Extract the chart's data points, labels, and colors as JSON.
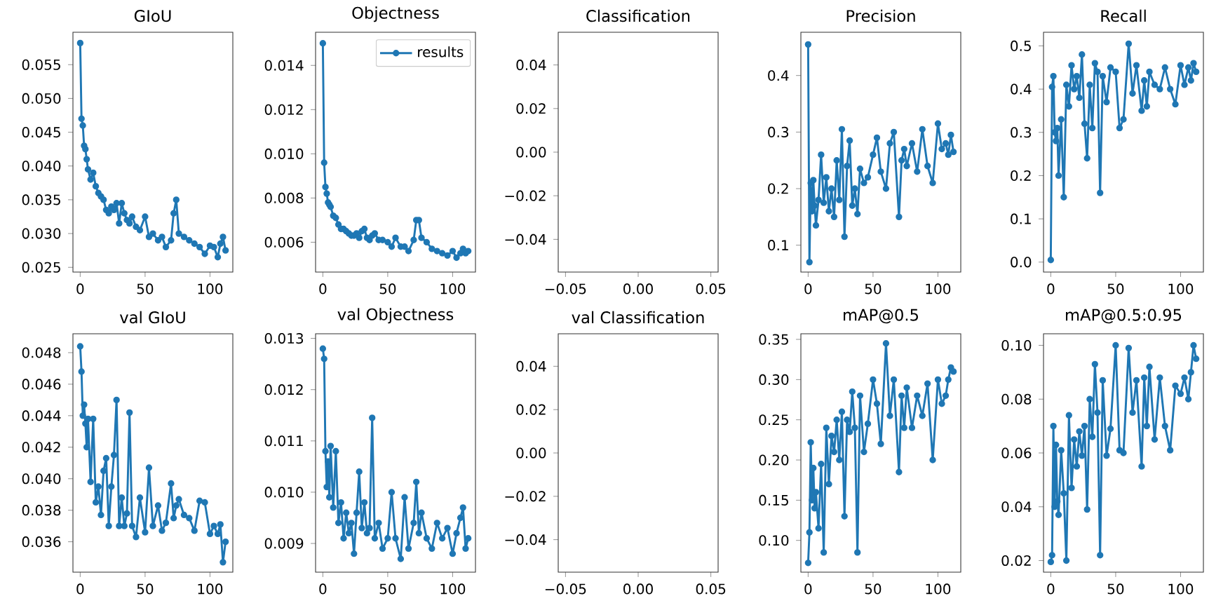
{
  "chart_data": [
    {
      "type": "line",
      "title": "GIoU",
      "marker": "circle",
      "xlim": [
        -5.6,
        117.6
      ],
      "ylim": [
        0.0243,
        0.0598
      ],
      "xticks": [
        0,
        50,
        100
      ],
      "yticks": [
        {
          "value": 0.025,
          "label": "0.025"
        },
        {
          "value": 0.03,
          "label": "0.030"
        },
        {
          "value": 0.035,
          "label": "0.035"
        },
        {
          "value": 0.04,
          "label": "0.040"
        },
        {
          "value": 0.045,
          "label": "0.045"
        },
        {
          "value": 0.05,
          "label": "0.050"
        },
        {
          "value": 0.055,
          "label": "0.055"
        }
      ],
      "x": [
        0,
        1,
        2,
        3,
        4,
        5,
        6,
        8,
        10,
        12,
        14,
        16,
        18,
        20,
        22,
        24,
        26,
        28,
        30,
        32,
        34,
        36,
        38,
        40,
        43,
        46,
        50,
        53,
        56,
        60,
        63,
        66,
        70,
        72,
        74,
        76,
        80,
        84,
        88,
        92,
        96,
        100,
        103,
        106,
        108,
        110,
        112
      ],
      "series": [
        {
          "color": "#1f77b4",
          "values": [
            0.0582,
            0.047,
            0.046,
            0.043,
            0.0425,
            0.041,
            0.0395,
            0.038,
            0.039,
            0.037,
            0.036,
            0.0355,
            0.035,
            0.0335,
            0.033,
            0.034,
            0.0335,
            0.0345,
            0.0315,
            0.0345,
            0.033,
            0.032,
            0.0315,
            0.0325,
            0.031,
            0.0305,
            0.0325,
            0.0295,
            0.03,
            0.029,
            0.0295,
            0.028,
            0.029,
            0.033,
            0.035,
            0.03,
            0.0295,
            0.029,
            0.0285,
            0.028,
            0.027,
            0.0282,
            0.028,
            0.0265,
            0.0285,
            0.0295,
            0.0275
          ]
        }
      ]
    },
    {
      "type": "line",
      "title": "Objectness",
      "marker": "circle",
      "legend": "top right",
      "xlim": [
        -5.6,
        117.6
      ],
      "ylim": [
        0.00465,
        0.0155
      ],
      "xticks": [
        0,
        50,
        100
      ],
      "yticks": [
        {
          "value": 0.006,
          "label": "0.006"
        },
        {
          "value": 0.008,
          "label": "0.008"
        },
        {
          "value": 0.01,
          "label": "0.010"
        },
        {
          "value": 0.012,
          "label": "0.012"
        },
        {
          "value": 0.014,
          "label": "0.014"
        }
      ],
      "x": [
        0,
        1,
        2,
        3,
        4,
        5,
        6,
        8,
        10,
        12,
        14,
        16,
        18,
        20,
        22,
        24,
        26,
        28,
        30,
        32,
        34,
        36,
        38,
        40,
        43,
        46,
        50,
        53,
        56,
        60,
        63,
        66,
        70,
        72,
        74,
        76,
        80,
        84,
        88,
        92,
        96,
        100,
        103,
        106,
        108,
        110,
        112
      ],
      "series": [
        {
          "name": "results",
          "color": "#1f77b4",
          "values": [
            0.015,
            0.0096,
            0.0085,
            0.0082,
            0.0078,
            0.0077,
            0.0076,
            0.0072,
            0.0071,
            0.0068,
            0.0066,
            0.0066,
            0.0065,
            0.0064,
            0.0063,
            0.0063,
            0.0064,
            0.0062,
            0.0065,
            0.0066,
            0.0062,
            0.0061,
            0.0063,
            0.0064,
            0.0061,
            0.0061,
            0.006,
            0.0058,
            0.0062,
            0.0058,
            0.0058,
            0.0056,
            0.0061,
            0.007,
            0.007,
            0.0062,
            0.006,
            0.0057,
            0.0056,
            0.0055,
            0.0054,
            0.0056,
            0.0053,
            0.0055,
            0.0057,
            0.0055,
            0.0056
          ]
        }
      ]
    },
    {
      "type": "line",
      "title": "Classification",
      "xlim": [
        -0.055,
        0.055
      ],
      "ylim": [
        -0.055,
        0.055
      ],
      "xticks": [
        {
          "value": -0.05,
          "label": "−0.05"
        },
        {
          "value": 0,
          "label": "0.00"
        },
        {
          "value": 0.05,
          "label": "0.05"
        }
      ],
      "yticks": [
        {
          "value": -0.04,
          "label": "−0.04"
        },
        {
          "value": -0.02,
          "label": "−0.02"
        },
        {
          "value": 0,
          "label": "0.00"
        },
        {
          "value": 0.02,
          "label": "0.02"
        },
        {
          "value": 0.04,
          "label": "0.04"
        }
      ]
    },
    {
      "type": "line",
      "title": "Precision",
      "marker": "circle",
      "xlim": [
        -5.6,
        117.6
      ],
      "ylim": [
        0.0525,
        0.4765
      ],
      "xticks": [
        0,
        50,
        100
      ],
      "yticks": [
        {
          "value": 0.1,
          "label": "0.1"
        },
        {
          "value": 0.2,
          "label": "0.2"
        },
        {
          "value": 0.3,
          "label": "0.3"
        },
        {
          "value": 0.4,
          "label": "0.4"
        }
      ],
      "x": [
        0,
        1,
        2,
        3,
        4,
        5,
        6,
        8,
        10,
        12,
        14,
        16,
        18,
        20,
        22,
        24,
        26,
        28,
        30,
        32,
        34,
        36,
        38,
        40,
        43,
        46,
        50,
        53,
        56,
        60,
        63,
        66,
        70,
        72,
        74,
        76,
        80,
        84,
        88,
        92,
        96,
        100,
        103,
        106,
        108,
        110,
        112
      ],
      "series": [
        {
          "color": "#1f77b4",
          "values": [
            0.455,
            0.07,
            0.21,
            0.16,
            0.215,
            0.17,
            0.135,
            0.18,
            0.26,
            0.175,
            0.22,
            0.16,
            0.2,
            0.15,
            0.25,
            0.18,
            0.305,
            0.115,
            0.24,
            0.285,
            0.17,
            0.2,
            0.155,
            0.235,
            0.21,
            0.22,
            0.26,
            0.29,
            0.23,
            0.2,
            0.28,
            0.3,
            0.15,
            0.25,
            0.27,
            0.24,
            0.28,
            0.23,
            0.305,
            0.24,
            0.21,
            0.315,
            0.27,
            0.28,
            0.26,
            0.295,
            0.265
          ]
        }
      ]
    },
    {
      "type": "line",
      "title": "Recall",
      "marker": "circle",
      "xlim": [
        -5.6,
        117.6
      ],
      "ylim": [
        -0.023,
        0.5315
      ],
      "xticks": [
        0,
        50,
        100
      ],
      "yticks": [
        {
          "value": 0,
          "label": "0.0"
        },
        {
          "value": 0.1,
          "label": "0.1"
        },
        {
          "value": 0.2,
          "label": "0.2"
        },
        {
          "value": 0.3,
          "label": "0.3"
        },
        {
          "value": 0.4,
          "label": "0.4"
        },
        {
          "value": 0.5,
          "label": "0.5"
        }
      ],
      "x": [
        0,
        1,
        2,
        3,
        4,
        5,
        6,
        8,
        10,
        12,
        14,
        16,
        18,
        20,
        22,
        24,
        26,
        28,
        30,
        32,
        34,
        36,
        38,
        40,
        43,
        46,
        50,
        53,
        56,
        60,
        63,
        66,
        70,
        72,
        74,
        76,
        80,
        84,
        88,
        92,
        96,
        100,
        103,
        106,
        108,
        110,
        112
      ],
      "series": [
        {
          "color": "#1f77b4",
          "values": [
            0.005,
            0.405,
            0.43,
            0.3,
            0.28,
            0.31,
            0.2,
            0.33,
            0.15,
            0.41,
            0.36,
            0.455,
            0.4,
            0.43,
            0.38,
            0.48,
            0.32,
            0.24,
            0.41,
            0.31,
            0.46,
            0.44,
            0.16,
            0.43,
            0.37,
            0.45,
            0.44,
            0.31,
            0.33,
            0.505,
            0.39,
            0.455,
            0.35,
            0.42,
            0.36,
            0.44,
            0.41,
            0.4,
            0.45,
            0.4,
            0.365,
            0.455,
            0.41,
            0.45,
            0.42,
            0.46,
            0.44
          ]
        }
      ]
    },
    {
      "type": "line",
      "title": "val GIoU",
      "marker": "circle",
      "xlim": [
        -5.6,
        117.6
      ],
      "ylim": [
        0.03407,
        0.0492
      ],
      "xticks": [
        0,
        50,
        100
      ],
      "yticks": [
        {
          "value": 0.036,
          "label": "0.036"
        },
        {
          "value": 0.038,
          "label": "0.038"
        },
        {
          "value": 0.04,
          "label": "0.040"
        },
        {
          "value": 0.042,
          "label": "0.042"
        },
        {
          "value": 0.044,
          "label": "0.044"
        },
        {
          "value": 0.046,
          "label": "0.046"
        },
        {
          "value": 0.048,
          "label": "0.048"
        }
      ],
      "x": [
        0,
        1,
        2,
        3,
        4,
        5,
        6,
        8,
        10,
        12,
        14,
        16,
        18,
        20,
        22,
        24,
        26,
        28,
        30,
        32,
        34,
        36,
        38,
        40,
        43,
        46,
        50,
        53,
        56,
        60,
        63,
        66,
        70,
        72,
        74,
        76,
        80,
        84,
        88,
        92,
        96,
        100,
        103,
        106,
        108,
        110,
        112
      ],
      "series": [
        {
          "color": "#1f77b4",
          "values": [
            0.0484,
            0.0468,
            0.044,
            0.0447,
            0.0435,
            0.042,
            0.0438,
            0.0398,
            0.0438,
            0.0385,
            0.0395,
            0.0377,
            0.0405,
            0.0413,
            0.037,
            0.0395,
            0.0415,
            0.045,
            0.037,
            0.0388,
            0.037,
            0.0378,
            0.0442,
            0.037,
            0.0363,
            0.0388,
            0.0366,
            0.0407,
            0.037,
            0.0383,
            0.0367,
            0.0372,
            0.0397,
            0.0375,
            0.0383,
            0.0387,
            0.0377,
            0.0375,
            0.0367,
            0.0386,
            0.0385,
            0.0365,
            0.037,
            0.0365,
            0.0371,
            0.0347,
            0.036
          ]
        }
      ]
    },
    {
      "type": "line",
      "title": "val Objectness",
      "marker": "circle",
      "xlim": [
        -5.6,
        117.6
      ],
      "ylim": [
        0.00844,
        0.01309
      ],
      "xticks": [
        0,
        50,
        100
      ],
      "yticks": [
        {
          "value": 0.009,
          "label": "0.009"
        },
        {
          "value": 0.01,
          "label": "0.010"
        },
        {
          "value": 0.011,
          "label": "0.011"
        },
        {
          "value": 0.012,
          "label": "0.012"
        },
        {
          "value": 0.013,
          "label": "0.013"
        }
      ],
      "x": [
        0,
        1,
        2,
        3,
        4,
        5,
        6,
        8,
        10,
        12,
        14,
        16,
        18,
        20,
        22,
        24,
        26,
        28,
        30,
        32,
        34,
        36,
        38,
        40,
        43,
        46,
        50,
        53,
        56,
        60,
        63,
        66,
        70,
        72,
        74,
        76,
        80,
        84,
        88,
        92,
        96,
        100,
        103,
        106,
        108,
        110,
        112
      ],
      "series": [
        {
          "color": "#1f77b4",
          "values": [
            0.0128,
            0.0126,
            0.0108,
            0.0101,
            0.0106,
            0.0099,
            0.0109,
            0.0097,
            0.0108,
            0.0094,
            0.0098,
            0.0091,
            0.0096,
            0.0092,
            0.0094,
            0.0088,
            0.0096,
            0.0104,
            0.0093,
            0.0098,
            0.0092,
            0.0093,
            0.01145,
            0.0091,
            0.0094,
            0.0089,
            0.0091,
            0.01,
            0.0091,
            0.0087,
            0.0099,
            0.0089,
            0.0094,
            0.0102,
            0.0092,
            0.0096,
            0.0091,
            0.0089,
            0.0094,
            0.0091,
            0.0093,
            0.0088,
            0.0092,
            0.0095,
            0.0097,
            0.0089,
            0.0091
          ]
        }
      ]
    },
    {
      "type": "line",
      "title": "val Classification",
      "xlim": [
        -0.055,
        0.055
      ],
      "ylim": [
        -0.055,
        0.055
      ],
      "xticks": [
        {
          "value": -0.05,
          "label": "−0.05"
        },
        {
          "value": 0,
          "label": "0.00"
        },
        {
          "value": 0.05,
          "label": "0.05"
        }
      ],
      "yticks": [
        {
          "value": -0.04,
          "label": "−0.04"
        },
        {
          "value": -0.02,
          "label": "−0.02"
        },
        {
          "value": 0,
          "label": "0.00"
        },
        {
          "value": 0.02,
          "label": "0.02"
        },
        {
          "value": 0.04,
          "label": "0.04"
        }
      ]
    },
    {
      "type": "line",
      "title": "mAP@0.5",
      "marker": "circle",
      "xlim": [
        -5.6,
        117.6
      ],
      "ylim": [
        0.0605,
        0.357
      ],
      "xticks": [
        0,
        50,
        100
      ],
      "yticks": [
        {
          "value": 0.1,
          "label": "0.10"
        },
        {
          "value": 0.15,
          "label": "0.15"
        },
        {
          "value": 0.2,
          "label": "0.20"
        },
        {
          "value": 0.25,
          "label": "0.25"
        },
        {
          "value": 0.3,
          "label": "0.30"
        },
        {
          "value": 0.35,
          "label": "0.35"
        }
      ],
      "x": [
        0,
        1,
        2,
        3,
        4,
        5,
        6,
        8,
        10,
        12,
        14,
        16,
        18,
        20,
        22,
        24,
        26,
        28,
        30,
        32,
        34,
        36,
        38,
        40,
        43,
        46,
        50,
        53,
        56,
        60,
        63,
        66,
        70,
        72,
        74,
        76,
        80,
        84,
        88,
        92,
        96,
        100,
        103,
        106,
        108,
        110,
        112
      ],
      "series": [
        {
          "color": "#1f77b4",
          "values": [
            0.072,
            0.11,
            0.222,
            0.15,
            0.19,
            0.14,
            0.16,
            0.115,
            0.195,
            0.085,
            0.24,
            0.17,
            0.23,
            0.21,
            0.25,
            0.2,
            0.26,
            0.13,
            0.25,
            0.235,
            0.285,
            0.24,
            0.085,
            0.28,
            0.21,
            0.245,
            0.3,
            0.27,
            0.22,
            0.345,
            0.255,
            0.3,
            0.185,
            0.28,
            0.24,
            0.29,
            0.24,
            0.28,
            0.255,
            0.295,
            0.2,
            0.3,
            0.27,
            0.28,
            0.3,
            0.315,
            0.31
          ]
        }
      ]
    },
    {
      "type": "line",
      "title": "mAP@0.5:0.95",
      "marker": "circle",
      "xlim": [
        -5.6,
        117.6
      ],
      "ylim": [
        0.0157,
        0.1043
      ],
      "xticks": [
        0,
        50,
        100
      ],
      "yticks": [
        {
          "value": 0.02,
          "label": "0.02"
        },
        {
          "value": 0.04,
          "label": "0.04"
        },
        {
          "value": 0.06,
          "label": "0.06"
        },
        {
          "value": 0.08,
          "label": "0.08"
        },
        {
          "value": 0.1,
          "label": "0.10"
        }
      ],
      "x": [
        0,
        1,
        2,
        3,
        4,
        5,
        6,
        8,
        10,
        12,
        14,
        16,
        18,
        20,
        22,
        24,
        26,
        28,
        30,
        32,
        34,
        36,
        38,
        40,
        43,
        46,
        50,
        53,
        56,
        60,
        63,
        66,
        70,
        72,
        74,
        76,
        80,
        84,
        88,
        92,
        96,
        100,
        103,
        106,
        108,
        110,
        112
      ],
      "series": [
        {
          "color": "#1f77b4",
          "values": [
            0.0195,
            0.022,
            0.07,
            0.04,
            0.063,
            0.042,
            0.037,
            0.061,
            0.045,
            0.02,
            0.074,
            0.047,
            0.065,
            0.055,
            0.068,
            0.059,
            0.07,
            0.039,
            0.08,
            0.066,
            0.093,
            0.075,
            0.022,
            0.087,
            0.059,
            0.069,
            0.1,
            0.061,
            0.06,
            0.099,
            0.075,
            0.087,
            0.055,
            0.088,
            0.07,
            0.092,
            0.065,
            0.088,
            0.07,
            0.061,
            0.085,
            0.082,
            0.088,
            0.08,
            0.09,
            0.1,
            0.095
          ]
        }
      ]
    }
  ]
}
